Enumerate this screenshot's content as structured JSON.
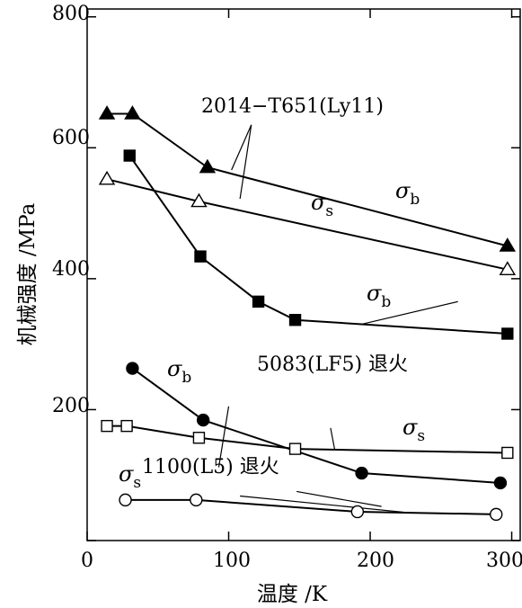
{
  "chart_data": {
    "type": "line",
    "xlabel": "温度 /K",
    "ylabel": "机械强度 /MPa",
    "xlim": [
      0,
      300
    ],
    "ylim": [
      0,
      800
    ],
    "x_ticks": [
      "0",
      "100",
      "200",
      "300"
    ],
    "y_ticks": [
      "200",
      "400",
      "600",
      "800"
    ],
    "grid": false,
    "series": [
      {
        "name": "2014-T651(Ly11) σb",
        "marker": "filled-triangle",
        "points": [
          [
            14,
            652
          ],
          [
            32,
            652
          ],
          [
            85,
            570
          ],
          [
            297,
            450
          ]
        ]
      },
      {
        "name": "2014-T651(Ly11) σs",
        "marker": "open-triangle",
        "points": [
          [
            14,
            552
          ],
          [
            79,
            518
          ],
          [
            297,
            414
          ]
        ]
      },
      {
        "name": "5083(LF5) 退火 σb",
        "marker": "filled-square",
        "points": [
          [
            30,
            588
          ],
          [
            80,
            434
          ],
          [
            121,
            365
          ],
          [
            147,
            337
          ],
          [
            297,
            316
          ]
        ]
      },
      {
        "name": "5083(LF5) 退火 σs",
        "marker": "open-square",
        "points": [
          [
            14,
            175
          ],
          [
            28,
            175
          ],
          [
            79,
            157
          ],
          [
            147,
            140
          ],
          [
            297,
            134
          ]
        ]
      },
      {
        "name": "1100(L5) 退火 σb",
        "marker": "filled-circle",
        "points": [
          [
            32,
            263
          ],
          [
            82,
            184
          ],
          [
            194,
            103
          ],
          [
            292,
            88
          ]
        ]
      },
      {
        "name": "1100(L5) 退火 σs",
        "marker": "open-circle",
        "points": [
          [
            27,
            62
          ],
          [
            77,
            62
          ],
          [
            191,
            44
          ],
          [
            289,
            40
          ]
        ]
      }
    ],
    "annotations": {
      "label_2014": "2014−T651(Ly11)",
      "label_5083": "5083(LF5) 退火",
      "label_1100": "1100(L5) 退火",
      "sigma": "σ",
      "sub_b": "b",
      "sub_s": "s"
    }
  }
}
